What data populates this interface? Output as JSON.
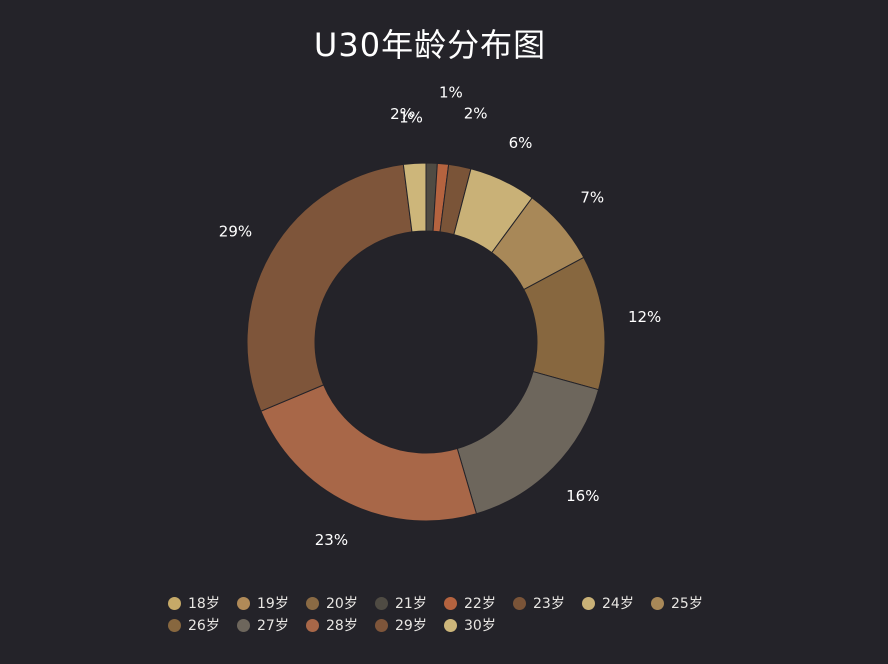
{
  "chart_data": {
    "type": "pie",
    "subtype": "donut",
    "title": "U30年龄分布图",
    "legend_position": "bottom",
    "categories": [
      "18岁",
      "19岁",
      "20岁",
      "21岁",
      "22岁",
      "23岁",
      "24岁",
      "25岁",
      "26岁",
      "27岁",
      "28岁",
      "29岁",
      "30岁"
    ],
    "values": [
      0,
      0,
      0,
      1,
      1,
      2,
      6,
      7,
      12,
      16,
      23,
      29,
      2
    ],
    "labels": [
      "",
      "",
      "",
      "1%",
      "1%",
      "2%",
      "6%",
      "7%",
      "12%",
      "16%",
      "23%",
      "29%",
      "2%"
    ],
    "colors": [
      "#c5a968",
      "#b08a58",
      "#8a6a44",
      "#4f4b43",
      "#b5633f",
      "#7a5438",
      "#c9b177",
      "#a88858",
      "#87673f",
      "#6d665c",
      "#a86748",
      "#7e553a",
      "#cdb67a"
    ]
  }
}
